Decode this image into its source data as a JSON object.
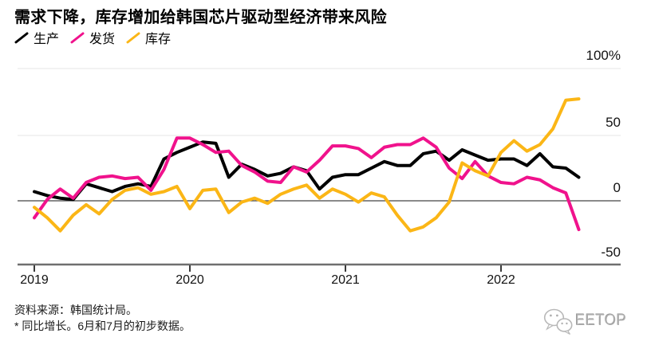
{
  "title": "需求下降，库存增加给韩国芯片驱动型经济带来风险",
  "legend": [
    {
      "label": "生产",
      "color": "#000000"
    },
    {
      "label": "发货",
      "color": "#f0128c"
    },
    {
      "label": "库存",
      "color": "#fbb616"
    }
  ],
  "chart_data": {
    "type": "line",
    "title": "需求下降，库存增加给韩国芯片驱动型经济带来风险",
    "x": [
      "2019-01",
      "2019-02",
      "2019-03",
      "2019-04",
      "2019-05",
      "2019-06",
      "2019-07",
      "2019-08",
      "2019-09",
      "2019-10",
      "2019-11",
      "2019-12",
      "2020-01",
      "2020-02",
      "2020-03",
      "2020-04",
      "2020-05",
      "2020-06",
      "2020-07",
      "2020-08",
      "2020-09",
      "2020-10",
      "2020-11",
      "2020-12",
      "2021-01",
      "2021-02",
      "2021-03",
      "2021-04",
      "2021-05",
      "2021-06",
      "2021-07",
      "2021-08",
      "2021-09",
      "2021-10",
      "2021-11",
      "2021-12",
      "2022-01",
      "2022-02",
      "2022-03",
      "2022-04",
      "2022-05",
      "2022-06",
      "2022-07"
    ],
    "series": [
      {
        "name": "生产",
        "color": "#000000",
        "values": [
          7,
          4,
          2,
          1,
          13,
          10,
          7,
          11,
          13,
          11,
          32,
          37,
          41,
          45,
          44,
          18,
          28,
          24,
          19,
          21,
          26,
          23,
          9,
          18,
          20,
          20,
          25,
          30,
          27,
          27,
          36,
          38,
          31,
          39,
          35,
          31,
          32,
          32,
          27,
          36,
          26,
          25,
          18
        ]
      },
      {
        "name": "发货",
        "color": "#f0128c",
        "values": [
          -13,
          1,
          9,
          2,
          14,
          18,
          19,
          17,
          18,
          8,
          24,
          48,
          48,
          43,
          37,
          38,
          27,
          22,
          15,
          14,
          26,
          22,
          31,
          42,
          42,
          40,
          33,
          41,
          43,
          43,
          48,
          41,
          25,
          17,
          30,
          19,
          14,
          13,
          18,
          16,
          10,
          6,
          -22
        ]
      },
      {
        "name": "库存",
        "color": "#fbb616",
        "values": [
          -5,
          -13,
          -23,
          -11,
          -3,
          -10,
          1,
          8,
          10,
          5,
          7,
          11,
          -6,
          8,
          9,
          -9,
          -1,
          2,
          -2,
          5,
          9,
          12,
          2,
          9,
          5,
          -1,
          6,
          3,
          -11,
          -23,
          -20,
          -13,
          -1,
          29,
          23,
          19,
          37,
          46,
          38,
          43,
          55,
          77,
          78
        ]
      }
    ],
    "xticks": [
      "2019",
      "2020",
      "2021",
      "2022"
    ],
    "yticks": [
      "100%",
      "50",
      "0",
      "-50"
    ],
    "ylim": [
      -50,
      100
    ],
    "units": "percent, year-over-year",
    "grid": "horizontal lines at 100 and 50; dark zero line; gray baseline at -50",
    "legend_position": "top-left"
  },
  "footer": {
    "source": "资料来源：韩国统计局。",
    "note": "* 同比增长。6月和7月的初步数据。"
  },
  "watermark": {
    "icon": "wechat-icon",
    "text": "EETOP"
  }
}
